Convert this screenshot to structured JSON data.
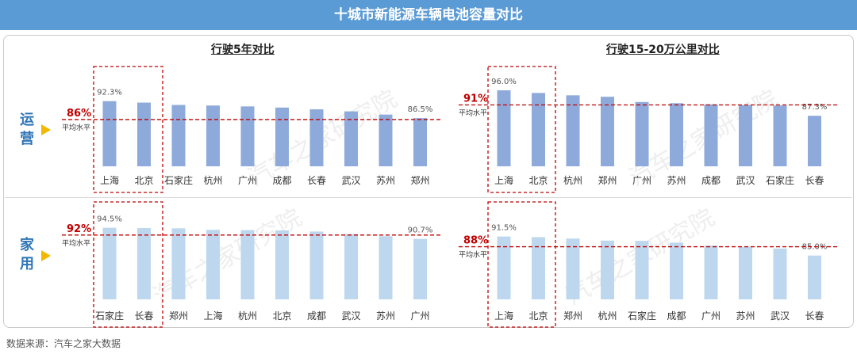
{
  "title": "十城市新能源车辆电池容量对比",
  "source": "数据来源：汽车之家大数据",
  "watermark": "汽车之家研究院",
  "avg_suffix": "平均水平",
  "row_labels": {
    "operating": [
      "运",
      "营"
    ],
    "household": [
      "家",
      "用"
    ]
  },
  "section_titles": {
    "left": "行驶5年对比",
    "right": "行驶15-20万公里对比"
  },
  "colors": {
    "banner": "#5b9bd5",
    "bar_operating": "#8eaadb",
    "bar_household": "#bdd7ee",
    "avg_line": "#c00000",
    "highlight_box": "#c00000",
    "row_label": "#2e75b6",
    "triangle": "#f2b800"
  },
  "chart_data": [
    {
      "type": "bar",
      "id": "op-5yr",
      "section": "行驶5年对比",
      "row": "运营",
      "categories": [
        "上海",
        "北京",
        "石家庄",
        "杭州",
        "广州",
        "成都",
        "长春",
        "武汉",
        "苏州",
        "郑州"
      ],
      "values": [
        92.3,
        91.8,
        91.0,
        90.8,
        90.5,
        90.1,
        89.5,
        88.8,
        87.7,
        86.5
      ],
      "labeled": {
        "0": "92.3%",
        "9": "86.5%"
      },
      "average": 86,
      "average_label": "86%",
      "highlight": [
        0,
        1
      ],
      "ylim": [
        70,
        100
      ]
    },
    {
      "type": "bar",
      "id": "op-km",
      "section": "行驶15-20万公里对比",
      "row": "运营",
      "categories": [
        "上海",
        "北京",
        "杭州",
        "郑州",
        "广州",
        "苏州",
        "成都",
        "武汉",
        "石家庄",
        "长春"
      ],
      "values": [
        96.0,
        95.1,
        94.3,
        93.8,
        92.0,
        91.6,
        91.2,
        90.9,
        90.8,
        87.3
      ],
      "labeled": {
        "0": "96.0%",
        "9": "87.3%"
      },
      "average": 91,
      "average_label": "91%",
      "highlight": [
        0,
        1
      ],
      "ylim": [
        70,
        100
      ]
    },
    {
      "type": "bar",
      "id": "hh-5yr",
      "section": "行驶5年对比",
      "row": "家用",
      "categories": [
        "石家庄",
        "长春",
        "郑州",
        "上海",
        "杭州",
        "北京",
        "成都",
        "武汉",
        "苏州",
        "广州"
      ],
      "values": [
        94.5,
        94.4,
        94.3,
        93.8,
        93.7,
        93.6,
        93.2,
        92.4,
        91.6,
        90.7
      ],
      "labeled": {
        "0": "94.5%",
        "9": "90.7%"
      },
      "average": 92,
      "average_label": "92%",
      "highlight": [
        0,
        1
      ],
      "ylim": [
        70,
        100
      ]
    },
    {
      "type": "bar",
      "id": "hh-km",
      "section": "行驶15-20万公里对比",
      "row": "家用",
      "categories": [
        "上海",
        "北京",
        "郑州",
        "杭州",
        "石家庄",
        "成都",
        "广州",
        "苏州",
        "武汉",
        "长春"
      ],
      "values": [
        91.5,
        91.3,
        90.8,
        90.1,
        90.0,
        89.4,
        88.4,
        88.0,
        87.4,
        85.0
      ],
      "labeled": {
        "0": "91.5%",
        "9": "85.0%"
      },
      "average": 88,
      "average_label": "88%",
      "highlight": [
        0,
        1
      ],
      "ylim": [
        70,
        100
      ]
    }
  ]
}
